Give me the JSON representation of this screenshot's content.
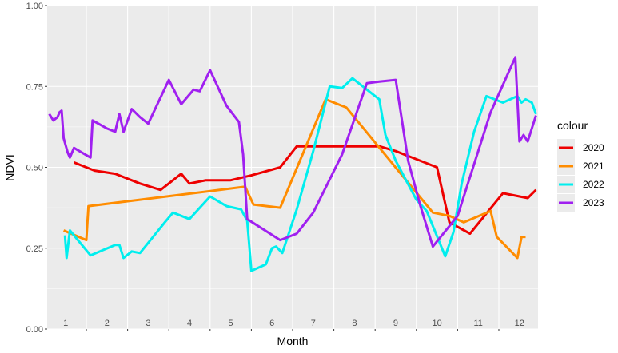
{
  "chart_data": {
    "type": "line",
    "title": "",
    "xlabel": "Month",
    "ylabel": "NDVI",
    "ylim": [
      0,
      1
    ],
    "xlim": [
      0.55,
      12.45
    ],
    "yticks": [
      "0.00",
      "0.25",
      "0.50",
      "0.75",
      "1.00"
    ],
    "month_labels": [
      "1",
      "2",
      "3",
      "4",
      "5",
      "6",
      "7",
      "8",
      "9",
      "10",
      "11",
      "12"
    ],
    "grid": true,
    "legend": {
      "title": "colour",
      "position": "right"
    },
    "series": [
      {
        "name": "2020",
        "color": "#ee0000",
        "x": [
          1.2,
          1.7,
          2.2,
          2.8,
          3.3,
          3.8,
          4.0,
          4.4,
          5.0,
          5.5,
          6.2,
          6.6,
          6.9,
          7.4,
          8.0,
          8.6,
          9.0,
          10.0,
          10.3,
          10.8,
          11.6,
          12.2,
          12.4
        ],
        "y": [
          0.515,
          0.49,
          0.48,
          0.45,
          0.43,
          0.48,
          0.45,
          0.46,
          0.46,
          0.475,
          0.5,
          0.565,
          0.565,
          0.565,
          0.565,
          0.565,
          0.55,
          0.5,
          0.33,
          0.295,
          0.42,
          0.405,
          0.43
        ]
      },
      {
        "name": "2021",
        "color": "#ff8c00",
        "x": [
          0.95,
          1.5,
          1.55,
          5.35,
          5.55,
          6.2,
          7.3,
          7.8,
          9.9,
          10.3,
          10.65,
          11.3,
          11.45,
          11.95,
          12.05,
          12.15
        ],
        "y": [
          0.305,
          0.275,
          0.38,
          0.44,
          0.385,
          0.375,
          0.71,
          0.685,
          0.36,
          0.35,
          0.33,
          0.365,
          0.285,
          0.22,
          0.285,
          0.285
        ]
      },
      {
        "name": "2022",
        "color": "#00eeee",
        "x": [
          0.98,
          1.02,
          1.1,
          1.6,
          2.2,
          2.3,
          2.4,
          2.6,
          2.8,
          3.4,
          3.6,
          4.0,
          4.5,
          4.9,
          5.25,
          5.4,
          5.5,
          5.85,
          6.0,
          6.1,
          6.25,
          6.6,
          7.0,
          7.4,
          7.7,
          7.95,
          8.3,
          8.6,
          8.75,
          9.0,
          9.5,
          9.75,
          10.2,
          10.4,
          10.6,
          10.9,
          11.2,
          11.6,
          11.95,
          12.05,
          12.15,
          12.3,
          12.4
        ],
        "y": [
          0.29,
          0.22,
          0.305,
          0.228,
          0.26,
          0.26,
          0.22,
          0.24,
          0.235,
          0.33,
          0.36,
          0.34,
          0.41,
          0.38,
          0.37,
          0.335,
          0.18,
          0.2,
          0.25,
          0.255,
          0.235,
          0.37,
          0.55,
          0.75,
          0.745,
          0.775,
          0.74,
          0.71,
          0.6,
          0.52,
          0.4,
          0.365,
          0.225,
          0.3,
          0.45,
          0.61,
          0.72,
          0.7,
          0.72,
          0.7,
          0.71,
          0.7,
          0.665
        ]
      },
      {
        "name": "2023",
        "color": "#a020f0",
        "x": [
          0.6,
          0.7,
          0.8,
          0.85,
          0.9,
          0.95,
          1.05,
          1.1,
          1.2,
          1.6,
          1.65,
          2.0,
          2.2,
          2.3,
          2.4,
          2.6,
          2.8,
          3.0,
          3.5,
          3.8,
          4.0,
          4.1,
          4.25,
          4.5,
          4.9,
          5.2,
          5.3,
          5.4,
          6.2,
          6.6,
          7.0,
          7.7,
          8.3,
          8.6,
          9.0,
          9.3,
          9.6,
          9.9,
          10.5,
          11.3,
          11.9,
          12.0,
          12.1,
          12.2,
          12.4
        ],
        "y": [
          0.665,
          0.645,
          0.655,
          0.67,
          0.675,
          0.59,
          0.545,
          0.53,
          0.56,
          0.53,
          0.645,
          0.62,
          0.61,
          0.665,
          0.61,
          0.68,
          0.655,
          0.635,
          0.77,
          0.695,
          0.725,
          0.74,
          0.735,
          0.8,
          0.69,
          0.64,
          0.54,
          0.34,
          0.275,
          0.295,
          0.36,
          0.54,
          0.76,
          0.765,
          0.77,
          0.52,
          0.38,
          0.255,
          0.35,
          0.67,
          0.84,
          0.58,
          0.6,
          0.58,
          0.66
        ]
      }
    ]
  }
}
